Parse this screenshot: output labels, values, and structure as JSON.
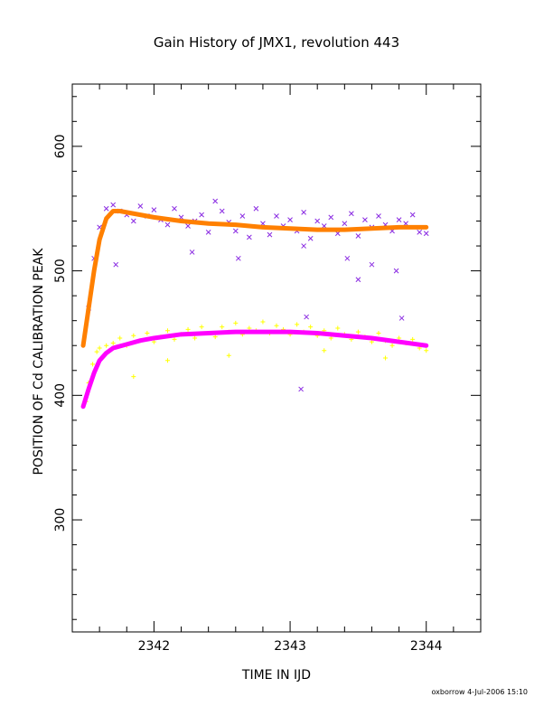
{
  "chart_data": {
    "type": "scatter",
    "title": "Gain History of JMX1, revolution 443",
    "xlabel": "TIME IN IJD",
    "ylabel": "POSITION OF Cd CALIBRATION PEAK",
    "xlim": [
      2341.4,
      2344.4
    ],
    "ylim": [
      210,
      650
    ],
    "xticks": [
      2342,
      2343,
      2344
    ],
    "yticks": [
      300,
      400,
      500,
      600
    ],
    "grid": false,
    "series": [
      {
        "marker": "x",
        "color": "#8a2be2",
        "x": [
          2341.52,
          2341.56,
          2341.6,
          2341.65,
          2341.7,
          2341.75,
          2341.8,
          2341.85,
          2341.9,
          2341.95,
          2342.0,
          2342.05,
          2342.1,
          2342.15,
          2342.2,
          2342.25,
          2342.3,
          2342.35,
          2342.4,
          2342.45,
          2342.5,
          2342.55,
          2342.6,
          2342.65,
          2342.7,
          2342.75,
          2342.8,
          2342.85,
          2342.9,
          2342.95,
          2343.0,
          2343.05,
          2343.1,
          2343.15,
          2343.2,
          2343.25,
          2343.3,
          2343.35,
          2343.4,
          2343.45,
          2343.5,
          2343.55,
          2343.6,
          2343.65,
          2343.7,
          2343.75,
          2343.8,
          2343.85,
          2343.9,
          2343.95,
          2344.0,
          2341.72,
          2342.28,
          2342.62,
          2343.1,
          2343.42,
          2343.6,
          2343.78,
          2343.5,
          2343.82,
          2343.12,
          2343.08
        ],
        "y": [
          470,
          510,
          535,
          550,
          553,
          548,
          545,
          540,
          552,
          544,
          549,
          541,
          537,
          550,
          543,
          536,
          540,
          545,
          531,
          556,
          548,
          539,
          532,
          544,
          527,
          550,
          538,
          529,
          544,
          536,
          541,
          532,
          547,
          526,
          540,
          536,
          543,
          530,
          538,
          546,
          528,
          541,
          535,
          544,
          537,
          532,
          541,
          538,
          545,
          531,
          530,
          505,
          515,
          510,
          520,
          510,
          505,
          500,
          493,
          462,
          463,
          405
        ]
      },
      {
        "marker": "+",
        "color": "#ffff00",
        "x": [
          2341.5,
          2341.52,
          2341.55,
          2341.58,
          2341.6,
          2341.65,
          2341.7,
          2341.75,
          2341.8,
          2341.85,
          2341.9,
          2341.95,
          2342.0,
          2342.05,
          2342.1,
          2342.15,
          2342.2,
          2342.25,
          2342.3,
          2342.35,
          2342.4,
          2342.45,
          2342.5,
          2342.55,
          2342.6,
          2342.65,
          2342.7,
          2342.75,
          2342.8,
          2342.85,
          2342.9,
          2342.95,
          2343.0,
          2343.05,
          2343.1,
          2343.15,
          2343.2,
          2343.25,
          2343.3,
          2343.35,
          2343.4,
          2343.45,
          2343.5,
          2343.55,
          2343.6,
          2343.65,
          2343.7,
          2343.75,
          2343.8,
          2343.85,
          2343.9,
          2343.95,
          2344.0,
          2341.85,
          2342.1,
          2342.55,
          2343.25,
          2343.7
        ],
        "y": [
          395,
          410,
          425,
          435,
          438,
          440,
          442,
          446,
          440,
          448,
          444,
          450,
          443,
          447,
          452,
          445,
          449,
          453,
          446,
          455,
          450,
          447,
          455,
          451,
          458,
          449,
          454,
          452,
          459,
          450,
          456,
          453,
          449,
          457,
          451,
          455,
          448,
          452,
          446,
          454,
          449,
          445,
          451,
          447,
          443,
          450,
          444,
          440,
          446,
          442,
          445,
          438,
          436,
          415,
          428,
          432,
          436,
          430
        ]
      }
    ],
    "fits": [
      {
        "color": "#ff8000",
        "x": [
          2341.48,
          2341.52,
          2341.56,
          2341.6,
          2341.65,
          2341.7,
          2341.75,
          2341.8,
          2341.9,
          2342.0,
          2342.2,
          2342.4,
          2342.6,
          2342.8,
          2343.0,
          2343.2,
          2343.4,
          2343.6,
          2343.8,
          2344.0
        ],
        "y": [
          440,
          470,
          500,
          525,
          542,
          548,
          548,
          547,
          545,
          543,
          540,
          538,
          537,
          535,
          534,
          533,
          533,
          534,
          535,
          535
        ]
      },
      {
        "color": "#ff00ff",
        "x": [
          2341.48,
          2341.52,
          2341.56,
          2341.6,
          2341.65,
          2341.7,
          2341.8,
          2341.9,
          2342.0,
          2342.2,
          2342.4,
          2342.6,
          2342.8,
          2343.0,
          2343.2,
          2343.4,
          2343.6,
          2343.8,
          2344.0
        ],
        "y": [
          391,
          405,
          418,
          428,
          434,
          438,
          441,
          444,
          446,
          449,
          450,
          451,
          451,
          451,
          450,
          448,
          446,
          443,
          440
        ]
      }
    ]
  },
  "footer": "oxborrow   4-Jul-2006 15:10"
}
